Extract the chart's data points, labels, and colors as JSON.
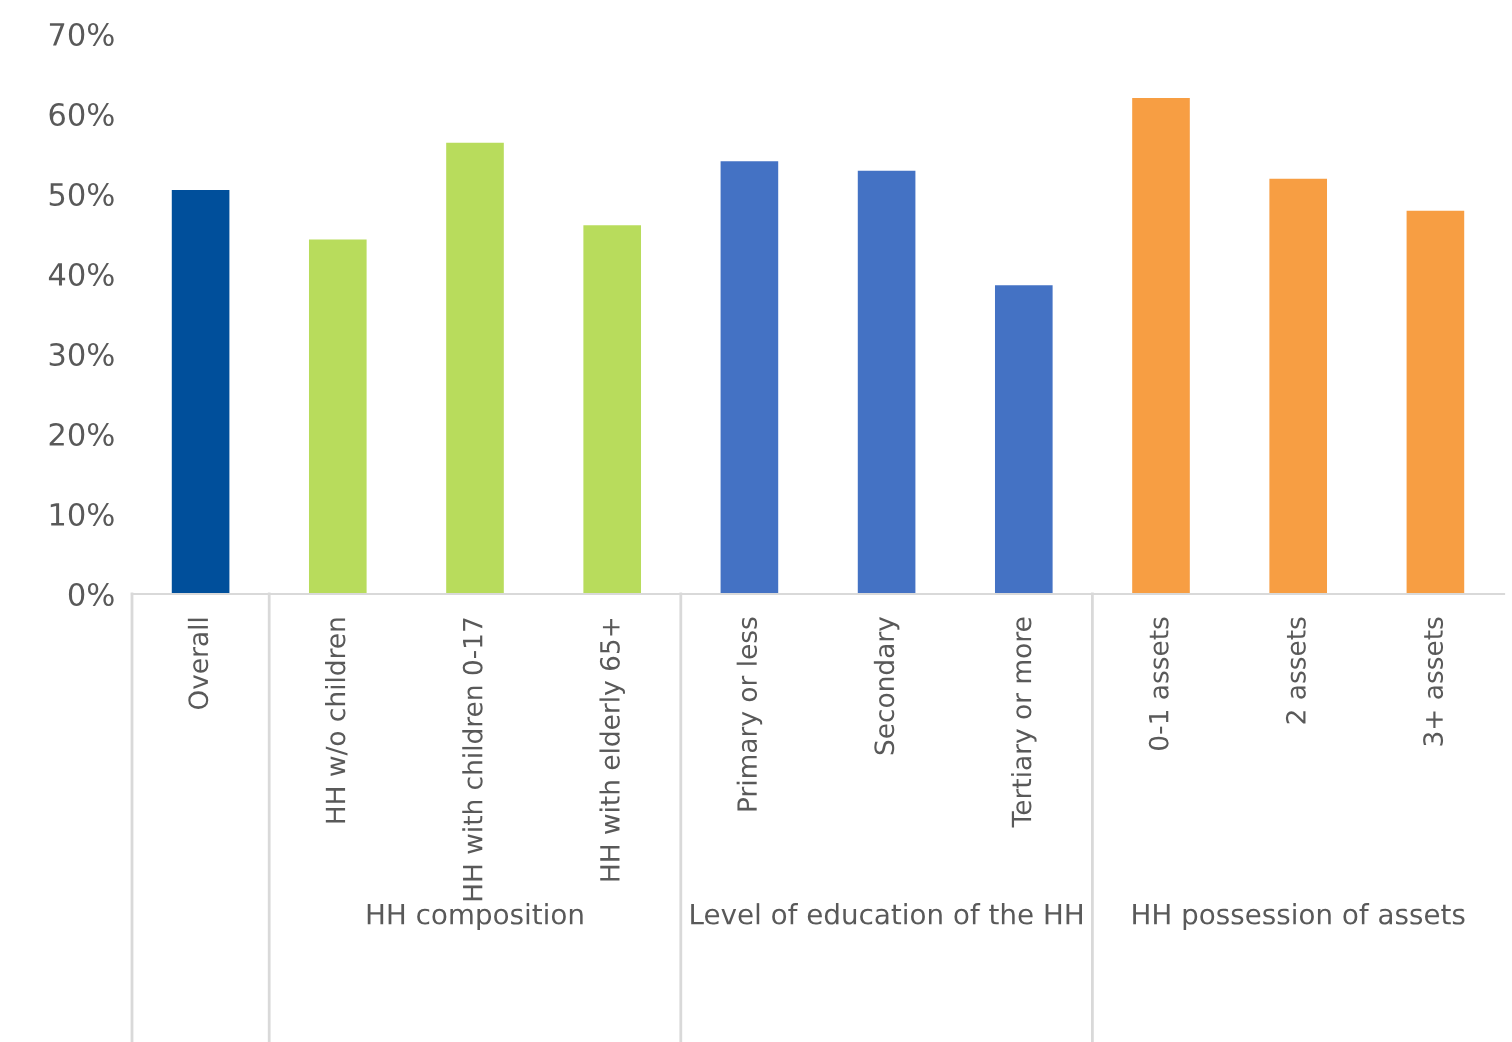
{
  "chart_data": {
    "type": "bar",
    "categories": [
      "Overall",
      "HH w/o children",
      "HH with children 0-17",
      "HH with elderly 65+",
      "Primary or less",
      "Secondary",
      "Tertiary or more",
      "0-1 assets",
      "2 assets",
      "3+ assets"
    ],
    "values": [
      50.5,
      44.3,
      56.4,
      46.1,
      54.1,
      52.9,
      38.6,
      62.0,
      51.9,
      47.9
    ],
    "colors": [
      "#004f9b",
      "#b8dc5c",
      "#b8dc5c",
      "#b8dc5c",
      "#4472c4",
      "#4472c4",
      "#4472c4",
      "#f79e43",
      "#f79e43",
      "#f79e43"
    ],
    "ylim": [
      0,
      70
    ],
    "yticks": [
      {
        "value": 0,
        "label": "0%"
      },
      {
        "value": 10,
        "label": "10%"
      },
      {
        "value": 20,
        "label": "20%"
      },
      {
        "value": 30,
        "label": "30%"
      },
      {
        "value": 40,
        "label": "40%"
      },
      {
        "value": 50,
        "label": "50%"
      },
      {
        "value": 60,
        "label": "60%"
      },
      {
        "value": 70,
        "label": "70%"
      }
    ],
    "annotations": [
      "HH composition",
      "Level of education of the HH",
      "HH possession of assets"
    ],
    "grid": false,
    "legend": false
  }
}
